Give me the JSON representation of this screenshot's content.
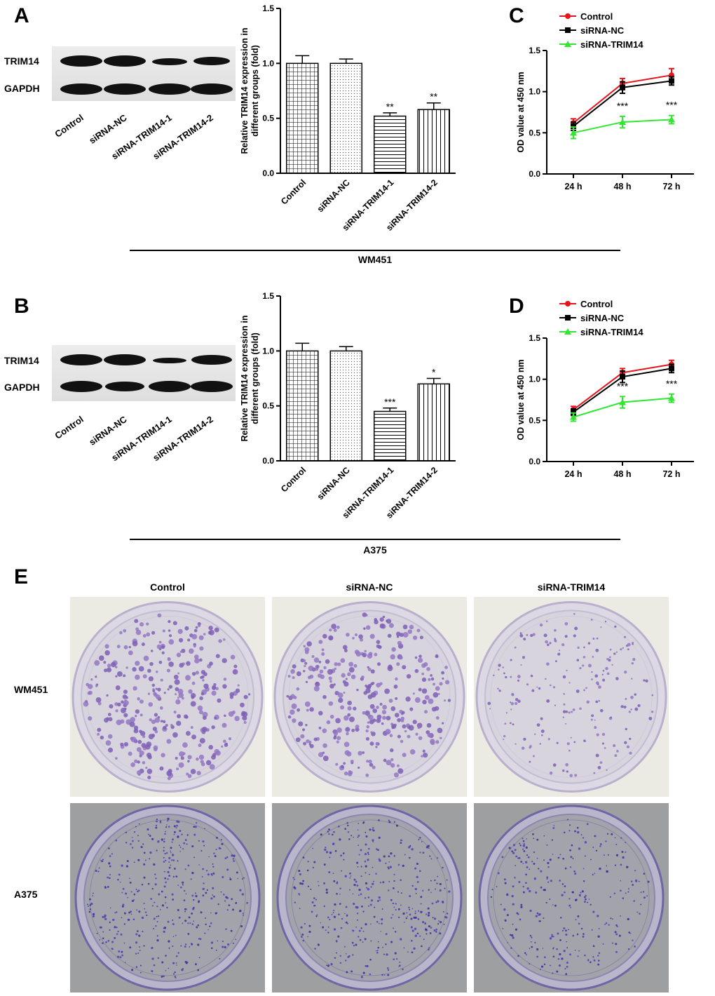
{
  "panels": {
    "A": {
      "letter": "A",
      "group": "WM451"
    },
    "B": {
      "letter": "B",
      "group": "A375"
    },
    "C": {
      "letter": "C"
    },
    "D": {
      "letter": "D"
    },
    "E": {
      "letter": "E"
    }
  },
  "blot": {
    "rows": [
      "TRIM14",
      "GAPDH"
    ],
    "lanes": [
      "Control",
      "siRNA-NC",
      "siRNA-TRIM14-1",
      "siRNA-TRIM14-2"
    ]
  },
  "colony": {
    "columns": [
      "Control",
      "siRNA-NC",
      "siRNA-TRIM14"
    ],
    "rows": [
      "WM451",
      "A375"
    ]
  },
  "colors": {
    "control": "#e8141b",
    "nc": "#000000",
    "trim14": "#33e633"
  },
  "chart_data": [
    {
      "id": "A-bar",
      "type": "bar",
      "categories": [
        "Control",
        "siRNA-NC",
        "siRNA-TRIM14-1",
        "siRNA-TRIM14-2"
      ],
      "values": [
        1.0,
        1.0,
        0.52,
        0.58
      ],
      "errors": [
        0.07,
        0.04,
        0.03,
        0.06
      ],
      "significance": [
        "",
        "",
        "**",
        "**"
      ],
      "patterns": [
        "grid",
        "dots",
        "hlines",
        "vlines"
      ],
      "ylabel": "Relative TRIM14 expression in different groups (fold)",
      "ylim": [
        0,
        1.5
      ],
      "yticks": [
        "0.0",
        "0.5",
        "1.0",
        "1.5"
      ]
    },
    {
      "id": "B-bar",
      "type": "bar",
      "categories": [
        "Control",
        "siRNA-NC",
        "siRNA-TRIM14-1",
        "siRNA-TRIM14-2"
      ],
      "values": [
        1.0,
        1.0,
        0.45,
        0.7
      ],
      "errors": [
        0.07,
        0.04,
        0.03,
        0.05
      ],
      "significance": [
        "",
        "",
        "***",
        "*"
      ],
      "patterns": [
        "grid",
        "dots",
        "hlines",
        "vlines"
      ],
      "ylabel": "Relative TRIM14 expression in different groups (fold)",
      "ylim": [
        0,
        1.5
      ],
      "yticks": [
        "0.0",
        "0.5",
        "1.0",
        "1.5"
      ]
    },
    {
      "id": "C-line",
      "type": "line",
      "x": [
        "24 h",
        "48 h",
        "72 h"
      ],
      "series": [
        {
          "name": "Control",
          "values": [
            0.62,
            1.1,
            1.2
          ],
          "errors": [
            0.05,
            0.06,
            0.08
          ],
          "color": "#e8141b",
          "marker": "circle"
        },
        {
          "name": "siRNA-NC",
          "values": [
            0.58,
            1.05,
            1.13
          ],
          "errors": [
            0.05,
            0.07,
            0.05
          ],
          "color": "#000000",
          "marker": "square"
        },
        {
          "name": "siRNA-TRIM14",
          "values": [
            0.5,
            0.63,
            0.66
          ],
          "errors": [
            0.07,
            0.07,
            0.05
          ],
          "color": "#33e633",
          "marker": "triangle"
        }
      ],
      "annotations": [
        "",
        "***",
        "***"
      ],
      "ylabel": "OD value at 450 nm",
      "ylim": [
        0,
        1.5
      ],
      "yticks": [
        "0.0",
        "0.5",
        "1.0",
        "1.5"
      ],
      "legend": "top-left"
    },
    {
      "id": "D-line",
      "type": "line",
      "x": [
        "24 h",
        "48 h",
        "72 h"
      ],
      "series": [
        {
          "name": "Control",
          "values": [
            0.63,
            1.08,
            1.18
          ],
          "errors": [
            0.04,
            0.05,
            0.05
          ],
          "color": "#e8141b",
          "marker": "circle"
        },
        {
          "name": "siRNA-NC",
          "values": [
            0.6,
            1.03,
            1.13
          ],
          "errors": [
            0.04,
            0.07,
            0.05
          ],
          "color": "#000000",
          "marker": "square"
        },
        {
          "name": "siRNA-TRIM14",
          "values": [
            0.54,
            0.72,
            0.77
          ],
          "errors": [
            0.05,
            0.07,
            0.05
          ],
          "color": "#33e633",
          "marker": "triangle"
        }
      ],
      "annotations": [
        "",
        "***",
        "***"
      ],
      "ylabel": "OD value at 450 nm",
      "ylim": [
        0,
        1.5
      ],
      "yticks": [
        "0.0",
        "0.5",
        "1.0",
        "1.5"
      ],
      "legend": "top-left"
    }
  ]
}
